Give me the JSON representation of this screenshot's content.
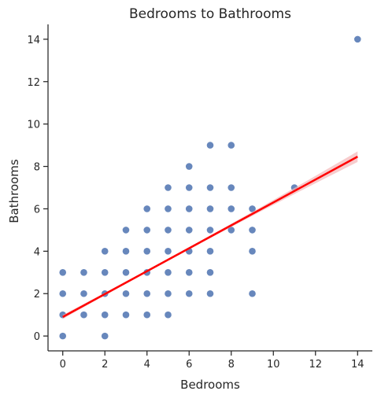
{
  "chart_data": {
    "type": "scatter",
    "title": "Bedrooms to Bathrooms",
    "xlabel": "Bedrooms",
    "ylabel": "Bathrooms",
    "xlim": [
      -0.7,
      14.7
    ],
    "ylim": [
      -0.7,
      14.7
    ],
    "xticks": [
      "0",
      "2",
      "4",
      "6",
      "8",
      "10",
      "12",
      "14"
    ],
    "yticks": [
      "0",
      "2",
      "4",
      "6",
      "8",
      "10",
      "12",
      "14"
    ],
    "grid": false,
    "legend": "none",
    "point_color": "#4c72b0",
    "points": [
      [
        0,
        0
      ],
      [
        0,
        1
      ],
      [
        0,
        2
      ],
      [
        0,
        3
      ],
      [
        1,
        1
      ],
      [
        1,
        2
      ],
      [
        1,
        3
      ],
      [
        2,
        0
      ],
      [
        2,
        1
      ],
      [
        2,
        2
      ],
      [
        2,
        3
      ],
      [
        2,
        4
      ],
      [
        3,
        1
      ],
      [
        3,
        2
      ],
      [
        3,
        3
      ],
      [
        3,
        4
      ],
      [
        3,
        5
      ],
      [
        4,
        1
      ],
      [
        4,
        2
      ],
      [
        4,
        3
      ],
      [
        4,
        4
      ],
      [
        4,
        5
      ],
      [
        4,
        6
      ],
      [
        5,
        1
      ],
      [
        5,
        2
      ],
      [
        5,
        3
      ],
      [
        5,
        4
      ],
      [
        5,
        5
      ],
      [
        5,
        6
      ],
      [
        5,
        7
      ],
      [
        6,
        2
      ],
      [
        6,
        3
      ],
      [
        6,
        4
      ],
      [
        6,
        5
      ],
      [
        6,
        6
      ],
      [
        6,
        7
      ],
      [
        6,
        8
      ],
      [
        7,
        2
      ],
      [
        7,
        3
      ],
      [
        7,
        4
      ],
      [
        7,
        5
      ],
      [
        7,
        6
      ],
      [
        7,
        7
      ],
      [
        7,
        9
      ],
      [
        8,
        5
      ],
      [
        8,
        6
      ],
      [
        8,
        7
      ],
      [
        8,
        9
      ],
      [
        9,
        2
      ],
      [
        9,
        4
      ],
      [
        9,
        5
      ],
      [
        9,
        6
      ],
      [
        11,
        7
      ],
      [
        14,
        14
      ]
    ],
    "regression": {
      "color": "#ff0000",
      "ci_color": "#f4b6b8",
      "x_range": [
        0,
        14
      ],
      "intercept": 0.9,
      "slope": 0.54,
      "ci_half_width": [
        0.05,
        0.25
      ]
    }
  }
}
